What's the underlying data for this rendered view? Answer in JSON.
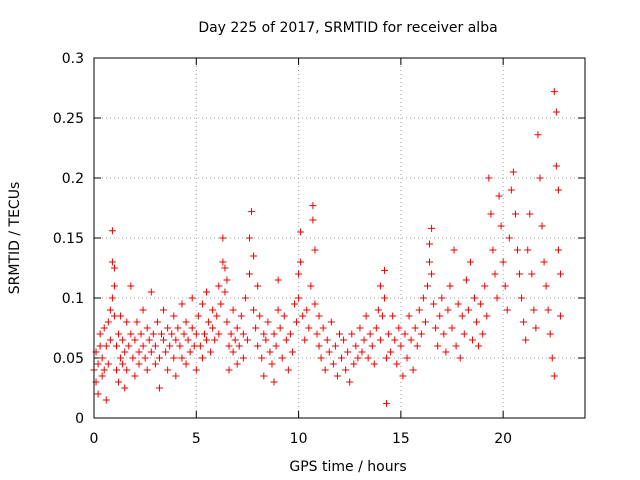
{
  "chart_data": {
    "type": "scatter",
    "title": "Day 225 of 2017, SRMTID for receiver alba",
    "xlabel": "GPS time / hours",
    "ylabel": "SRMTID / TECUs",
    "xlim": [
      0,
      24
    ],
    "ylim": [
      0,
      0.3
    ],
    "xticks": [
      0,
      5,
      10,
      15,
      20
    ],
    "xtick_labels": [
      "0",
      "5",
      "10",
      "15",
      "20"
    ],
    "yticks": [
      0,
      0.05,
      0.1,
      0.15,
      0.2,
      0.25,
      0.3
    ],
    "ytick_labels": [
      "0",
      "0.05",
      "0.1",
      "0.15",
      "0.2",
      "0.25",
      "0.3"
    ],
    "grid": true,
    "marker": "+",
    "color": "#ee0000",
    "series": [
      {
        "name": "SRMTID",
        "points": [
          [
            0.0,
            0.04
          ],
          [
            0.1,
            0.03
          ],
          [
            0.1,
            0.055
          ],
          [
            0.2,
            0.045
          ],
          [
            0.2,
            0.02
          ],
          [
            0.3,
            0.06
          ],
          [
            0.3,
            0.07
          ],
          [
            0.4,
            0.05
          ],
          [
            0.4,
            0.035
          ],
          [
            0.5,
            0.075
          ],
          [
            0.5,
            0.04
          ],
          [
            0.6,
            0.06
          ],
          [
            0.6,
            0.015
          ],
          [
            0.7,
            0.08
          ],
          [
            0.7,
            0.045
          ],
          [
            0.8,
            0.065
          ],
          [
            0.8,
            0.09
          ],
          [
            0.9,
            0.1
          ],
          [
            0.9,
            0.13
          ],
          [
            0.9,
            0.156
          ],
          [
            1.0,
            0.125
          ],
          [
            1.0,
            0.11
          ],
          [
            1.0,
            0.085
          ],
          [
            1.1,
            0.06
          ],
          [
            1.1,
            0.04
          ],
          [
            1.2,
            0.07
          ],
          [
            1.2,
            0.03
          ],
          [
            1.3,
            0.05
          ],
          [
            1.3,
            0.085
          ],
          [
            1.4,
            0.065
          ],
          [
            1.4,
            0.045
          ],
          [
            1.5,
            0.055
          ],
          [
            1.5,
            0.025
          ],
          [
            1.6,
            0.08
          ],
          [
            1.6,
            0.04
          ],
          [
            1.7,
            0.06
          ],
          [
            1.8,
            0.07
          ],
          [
            1.8,
            0.11
          ],
          [
            1.9,
            0.05
          ],
          [
            2.0,
            0.065
          ],
          [
            2.0,
            0.035
          ],
          [
            2.1,
            0.08
          ],
          [
            2.2,
            0.055
          ],
          [
            2.2,
            0.045
          ],
          [
            2.3,
            0.07
          ],
          [
            2.4,
            0.06
          ],
          [
            2.4,
            0.09
          ],
          [
            2.5,
            0.05
          ],
          [
            2.6,
            0.075
          ],
          [
            2.6,
            0.04
          ],
          [
            2.7,
            0.065
          ],
          [
            2.8,
            0.055
          ],
          [
            2.8,
            0.105
          ],
          [
            2.9,
            0.07
          ],
          [
            3.0,
            0.06
          ],
          [
            3.0,
            0.045
          ],
          [
            3.1,
            0.08
          ],
          [
            3.2,
            0.05
          ],
          [
            3.2,
            0.025
          ],
          [
            3.3,
            0.07
          ],
          [
            3.4,
            0.065
          ],
          [
            3.4,
            0.09
          ],
          [
            3.5,
            0.055
          ],
          [
            3.6,
            0.075
          ],
          [
            3.6,
            0.04
          ],
          [
            3.7,
            0.06
          ],
          [
            3.8,
            0.07
          ],
          [
            3.9,
            0.05
          ],
          [
            3.9,
            0.085
          ],
          [
            4.0,
            0.065
          ],
          [
            4.0,
            0.035
          ],
          [
            4.1,
            0.075
          ],
          [
            4.2,
            0.06
          ],
          [
            4.3,
            0.05
          ],
          [
            4.3,
            0.095
          ],
          [
            4.4,
            0.07
          ],
          [
            4.5,
            0.08
          ],
          [
            4.5,
            0.045
          ],
          [
            4.6,
            0.065
          ],
          [
            4.7,
            0.055
          ],
          [
            4.8,
            0.075
          ],
          [
            4.8,
            0.1
          ],
          [
            4.9,
            0.06
          ],
          [
            5.0,
            0.07
          ],
          [
            5.0,
            0.04
          ],
          [
            5.1,
            0.085
          ],
          [
            5.2,
            0.06
          ],
          [
            5.3,
            0.095
          ],
          [
            5.3,
            0.05
          ],
          [
            5.4,
            0.07
          ],
          [
            5.5,
            0.065
          ],
          [
            5.5,
            0.105
          ],
          [
            5.6,
            0.08
          ],
          [
            5.7,
            0.055
          ],
          [
            5.8,
            0.09
          ],
          [
            5.8,
            0.075
          ],
          [
            5.9,
            0.065
          ],
          [
            6.0,
            0.085
          ],
          [
            6.1,
            0.07
          ],
          [
            6.1,
            0.11
          ],
          [
            6.2,
            0.095
          ],
          [
            6.3,
            0.13
          ],
          [
            6.3,
            0.15
          ],
          [
            6.4,
            0.125
          ],
          [
            6.4,
            0.105
          ],
          [
            6.5,
            0.115
          ],
          [
            6.5,
            0.08
          ],
          [
            6.6,
            0.06
          ],
          [
            6.6,
            0.04
          ],
          [
            6.7,
            0.07
          ],
          [
            6.8,
            0.055
          ],
          [
            6.8,
            0.09
          ],
          [
            6.9,
            0.065
          ],
          [
            7.0,
            0.075
          ],
          [
            7.0,
            0.045
          ],
          [
            7.1,
            0.06
          ],
          [
            7.2,
            0.085
          ],
          [
            7.3,
            0.07
          ],
          [
            7.3,
            0.05
          ],
          [
            7.4,
            0.1
          ],
          [
            7.5,
            0.065
          ],
          [
            7.6,
            0.12
          ],
          [
            7.6,
            0.15
          ],
          [
            7.7,
            0.172
          ],
          [
            7.8,
            0.135
          ],
          [
            7.8,
            0.09
          ],
          [
            7.9,
            0.075
          ],
          [
            8.0,
            0.11
          ],
          [
            8.0,
            0.06
          ],
          [
            8.1,
            0.085
          ],
          [
            8.2,
            0.05
          ],
          [
            8.3,
            0.07
          ],
          [
            8.3,
            0.035
          ],
          [
            8.4,
            0.065
          ],
          [
            8.5,
            0.08
          ],
          [
            8.6,
            0.055
          ],
          [
            8.7,
            0.045
          ],
          [
            8.8,
            0.03
          ],
          [
            8.8,
            0.07
          ],
          [
            8.9,
            0.06
          ],
          [
            9.0,
            0.115
          ],
          [
            9.0,
            0.09
          ],
          [
            9.1,
            0.075
          ],
          [
            9.2,
            0.05
          ],
          [
            9.3,
            0.085
          ],
          [
            9.4,
            0.065
          ],
          [
            9.5,
            0.04
          ],
          [
            9.6,
            0.07
          ],
          [
            9.7,
            0.055
          ],
          [
            9.8,
            0.095
          ],
          [
            9.9,
            0.08
          ],
          [
            10.0,
            0.12
          ],
          [
            10.0,
            0.1
          ],
          [
            10.1,
            0.155
          ],
          [
            10.1,
            0.13
          ],
          [
            10.2,
            0.085
          ],
          [
            10.3,
            0.065
          ],
          [
            10.4,
            0.09
          ],
          [
            10.5,
            0.075
          ],
          [
            10.6,
            0.11
          ],
          [
            10.7,
            0.165
          ],
          [
            10.7,
            0.177
          ],
          [
            10.8,
            0.14
          ],
          [
            10.8,
            0.095
          ],
          [
            10.9,
            0.07
          ],
          [
            11.0,
            0.06
          ],
          [
            11.0,
            0.085
          ],
          [
            11.1,
            0.05
          ],
          [
            11.2,
            0.075
          ],
          [
            11.3,
            0.04
          ],
          [
            11.4,
            0.065
          ],
          [
            11.5,
            0.055
          ],
          [
            11.6,
            0.08
          ],
          [
            11.7,
            0.045
          ],
          [
            11.8,
            0.06
          ],
          [
            11.9,
            0.035
          ],
          [
            12.0,
            0.07
          ],
          [
            12.1,
            0.05
          ],
          [
            12.2,
            0.065
          ],
          [
            12.3,
            0.04
          ],
          [
            12.4,
            0.055
          ],
          [
            12.5,
            0.03
          ],
          [
            12.6,
            0.07
          ],
          [
            12.7,
            0.045
          ],
          [
            12.8,
            0.06
          ],
          [
            12.9,
            0.05
          ],
          [
            13.0,
            0.075
          ],
          [
            13.1,
            0.055
          ],
          [
            13.2,
            0.065
          ],
          [
            13.3,
            0.085
          ],
          [
            13.4,
            0.05
          ],
          [
            13.5,
            0.07
          ],
          [
            13.6,
            0.06
          ],
          [
            13.7,
            0.045
          ],
          [
            13.8,
            0.075
          ],
          [
            13.9,
            0.09
          ],
          [
            14.0,
            0.11
          ],
          [
            14.0,
            0.065
          ],
          [
            14.1,
            0.085
          ],
          [
            14.2,
            0.1
          ],
          [
            14.2,
            0.123
          ],
          [
            14.3,
            0.012
          ],
          [
            14.3,
            0.05
          ],
          [
            14.4,
            0.07
          ],
          [
            14.5,
            0.055
          ],
          [
            14.6,
            0.085
          ],
          [
            14.7,
            0.065
          ],
          [
            14.8,
            0.045
          ],
          [
            14.9,
            0.075
          ],
          [
            15.0,
            0.06
          ],
          [
            15.1,
            0.035
          ],
          [
            15.2,
            0.07
          ],
          [
            15.3,
            0.05
          ],
          [
            15.4,
            0.085
          ],
          [
            15.5,
            0.065
          ],
          [
            15.6,
            0.04
          ],
          [
            15.7,
            0.075
          ],
          [
            15.8,
            0.06
          ],
          [
            15.9,
            0.09
          ],
          [
            16.0,
            0.07
          ],
          [
            16.1,
            0.1
          ],
          [
            16.2,
            0.08
          ],
          [
            16.3,
            0.11
          ],
          [
            16.4,
            0.13
          ],
          [
            16.4,
            0.145
          ],
          [
            16.5,
            0.158
          ],
          [
            16.5,
            0.12
          ],
          [
            16.6,
            0.095
          ],
          [
            16.7,
            0.075
          ],
          [
            16.8,
            0.06
          ],
          [
            16.9,
            0.085
          ],
          [
            17.0,
            0.1
          ],
          [
            17.1,
            0.07
          ],
          [
            17.2,
            0.055
          ],
          [
            17.3,
            0.09
          ],
          [
            17.4,
            0.11
          ],
          [
            17.5,
            0.075
          ],
          [
            17.6,
            0.14
          ],
          [
            17.7,
            0.06
          ],
          [
            17.8,
            0.095
          ],
          [
            17.9,
            0.05
          ],
          [
            18.0,
            0.085
          ],
          [
            18.1,
            0.07
          ],
          [
            18.2,
            0.115
          ],
          [
            18.3,
            0.09
          ],
          [
            18.4,
            0.13
          ],
          [
            18.5,
            0.065
          ],
          [
            18.6,
            0.1
          ],
          [
            18.7,
            0.08
          ],
          [
            18.8,
            0.06
          ],
          [
            18.9,
            0.095
          ],
          [
            19.0,
            0.07
          ],
          [
            19.1,
            0.11
          ],
          [
            19.2,
            0.085
          ],
          [
            19.3,
            0.2
          ],
          [
            19.4,
            0.17
          ],
          [
            19.5,
            0.14
          ],
          [
            19.6,
            0.12
          ],
          [
            19.7,
            0.1
          ],
          [
            19.8,
            0.185
          ],
          [
            19.9,
            0.16
          ],
          [
            20.0,
            0.13
          ],
          [
            20.1,
            0.11
          ],
          [
            20.2,
            0.09
          ],
          [
            20.3,
            0.15
          ],
          [
            20.4,
            0.19
          ],
          [
            20.5,
            0.205
          ],
          [
            20.6,
            0.17
          ],
          [
            20.7,
            0.14
          ],
          [
            20.8,
            0.12
          ],
          [
            20.9,
            0.1
          ],
          [
            21.0,
            0.08
          ],
          [
            21.1,
            0.065
          ],
          [
            21.2,
            0.14
          ],
          [
            21.3,
            0.17
          ],
          [
            21.4,
            0.12
          ],
          [
            21.5,
            0.09
          ],
          [
            21.6,
            0.075
          ],
          [
            21.7,
            0.236
          ],
          [
            21.8,
            0.2
          ],
          [
            21.9,
            0.16
          ],
          [
            22.0,
            0.13
          ],
          [
            22.1,
            0.11
          ],
          [
            22.2,
            0.09
          ],
          [
            22.3,
            0.07
          ],
          [
            22.4,
            0.05
          ],
          [
            22.5,
            0.035
          ],
          [
            22.5,
            0.272
          ],
          [
            22.6,
            0.255
          ],
          [
            22.6,
            0.21
          ],
          [
            22.7,
            0.19
          ],
          [
            22.7,
            0.14
          ],
          [
            22.8,
            0.12
          ],
          [
            22.8,
            0.085
          ]
        ]
      }
    ]
  }
}
